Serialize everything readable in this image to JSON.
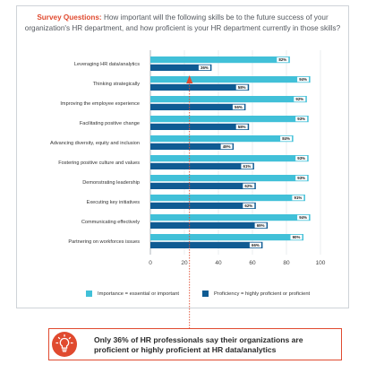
{
  "header": {
    "lead": "Survey Questions:",
    "text": " How important will the following skills be to the future success of your organization's HR department, and how proficient is your HR department currently in those skills?"
  },
  "chart_data": {
    "type": "bar",
    "orientation": "horizontal",
    "categories": [
      "Leveraging HR data/analytics",
      "Thinking strategically",
      "Improving the employee experience",
      "Facilitating positive change",
      "Advancing diversity, equity and inclusion",
      "Fostering positive culture and values",
      "Demonstrating leadership",
      "Executing key initiatives",
      "Communicating effectively",
      "Partnering on workforces issues"
    ],
    "series": [
      {
        "name": "Importance = essential or important",
        "color": "#41c0d8",
        "values": [
          82,
          94,
          92,
          93,
          84,
          93,
          93,
          91,
          94,
          90
        ]
      },
      {
        "name": "Proficiency = highly proficient or proficient",
        "color": "#0f5b93",
        "values": [
          36,
          58,
          56,
          58,
          49,
          61,
          62,
          62,
          69,
          66
        ]
      }
    ],
    "value_labels": [
      [
        "82%",
        "94%",
        "92%",
        "93%",
        "84%",
        "93%",
        "93%",
        "91%",
        "94%",
        "90%"
      ],
      [
        "36%",
        "58%",
        "56%",
        "58%",
        "49%",
        "61%",
        "62%",
        "62%",
        "69%",
        "66%"
      ]
    ],
    "xlim": [
      0,
      100
    ],
    "xticks": [
      "0",
      "20",
      "40",
      "60",
      "80",
      "100"
    ],
    "legend_position": "bottom",
    "grid": true
  },
  "callout": {
    "text": "Only 36% of HR professionals say their organizations are proficient or highly proficient at HR data/analytics",
    "icon": "lightbulb-icon",
    "accent": "#e04a2f"
  }
}
